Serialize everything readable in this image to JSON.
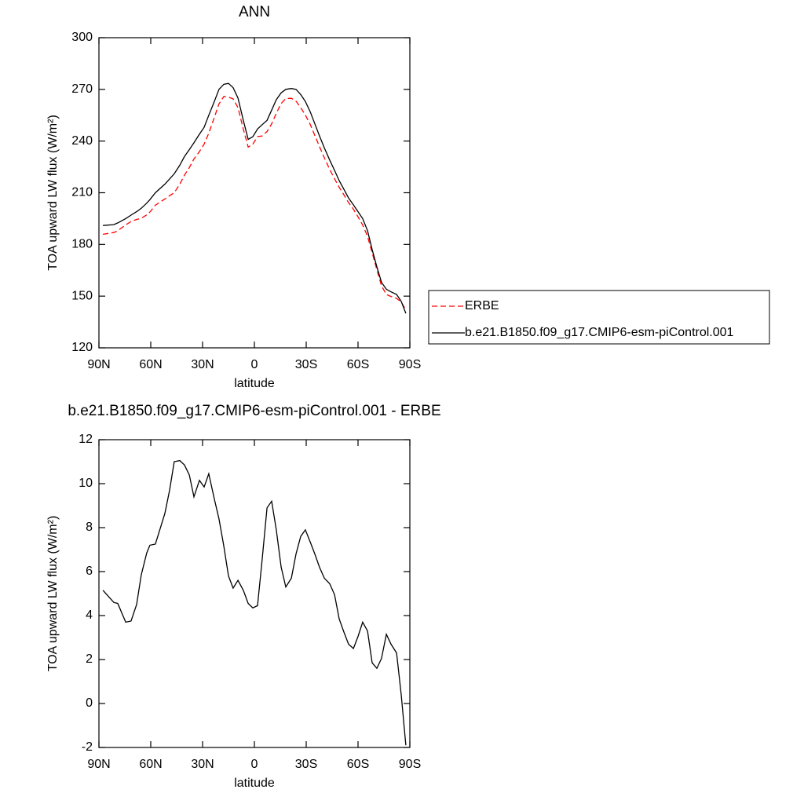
{
  "chart_data": [
    {
      "type": "line",
      "title": "ANN",
      "x_label": "latitude",
      "y_label": "TOA upward LW flux (W/m²)",
      "x": [
        87.7,
        81.4,
        79.1,
        74.5,
        71.4,
        68.2,
        65.5,
        62.3,
        60.5,
        57.3,
        51.8,
        49.1,
        46.4,
        43.2,
        40.5,
        37.7,
        35.0,
        31.8,
        29.1,
        26.4,
        23.2,
        20.5,
        17.7,
        15.0,
        12.3,
        9.5,
        6.4,
        3.6,
        0.9,
        -1.8,
        -4.5,
        -7.3,
        -10.0,
        -12.7,
        -15.5,
        -18.2,
        -21.4,
        -24.1,
        -26.8,
        -29.5,
        -32.3,
        -35.0,
        -37.7,
        -40.5,
        -43.6,
        -46.4,
        -49.1,
        -51.8,
        -54.5,
        -57.3,
        -60.0,
        -62.7,
        -65.5,
        -68.2,
        -70.9,
        -73.6,
        -76.4,
        -79.1,
        -82.3,
        -85.0,
        -87.7
      ],
      "series": [
        {
          "name": "ERBE",
          "color": "#ff0000",
          "dash": "dashed",
          "values": [
            185.9,
            186.9,
            188,
            191.3,
            193.3,
            194.5,
            195.2,
            197.2,
            198.8,
            202.8,
            206.4,
            208.3,
            210,
            215,
            220.2,
            224.6,
            229.6,
            233.9,
            238.2,
            244.6,
            253.7,
            261.6,
            265.9,
            265.5,
            264.5,
            259.4,
            246.9,
            236.5,
            238.2,
            242.6,
            243,
            245.5,
            250,
            256.1,
            261.8,
            264.7,
            264.8,
            263.2,
            259.4,
            255.1,
            249.7,
            243.2,
            236.8,
            230.3,
            223.6,
            218.1,
            213.2,
            208.8,
            204.3,
            200.5,
            196,
            191.3,
            184.7,
            175.2,
            165.4,
            156,
            150.9,
            149.8,
            148.7,
            146.6,
            141.9
          ]
        },
        {
          "name": "b.e21.B1850.f09_g17.CMIP6-esm-piControl.001",
          "color": "#000000",
          "dash": "solid",
          "values": [
            191,
            191.5,
            192.5,
            195,
            197,
            199,
            201,
            204,
            206,
            210,
            215,
            218,
            221,
            226,
            231,
            235,
            239,
            244,
            248,
            255,
            263,
            270,
            273,
            273.5,
            271,
            265,
            252,
            241,
            242.5,
            247,
            249.5,
            252,
            258,
            264,
            268,
            270,
            270.5,
            270,
            267,
            263,
            257,
            250,
            243,
            236,
            229,
            223,
            217,
            212,
            207,
            203,
            199,
            195,
            188,
            177,
            167,
            158,
            154,
            152.5,
            151,
            147,
            140
          ]
        }
      ],
      "xlim": [
        90,
        -90
      ],
      "xticks": [
        {
          "value": 90,
          "label": "90N"
        },
        {
          "value": 60,
          "label": "60N"
        },
        {
          "value": 30,
          "label": "30N"
        },
        0,
        {
          "value": -30,
          "label": "30S"
        },
        {
          "value": -60,
          "label": "60S"
        },
        {
          "value": -90,
          "label": "90S"
        }
      ],
      "ylim": [
        120,
        300
      ],
      "yticks": [
        120,
        150,
        180,
        210,
        240,
        270,
        300
      ],
      "legend": "right"
    },
    {
      "type": "line",
      "title": "b.e21.B1850.f09_g17.CMIP6-esm-piControl.001 - ERBE",
      "x_label": "latitude",
      "y_label": "TOA upward LW flux (W/m²)",
      "x": [
        87.7,
        81.4,
        79.1,
        74.5,
        71.4,
        68.2,
        65.5,
        62.3,
        60.5,
        57.3,
        51.8,
        49.1,
        46.4,
        43.2,
        40.5,
        37.7,
        35.0,
        31.8,
        29.1,
        26.4,
        23.2,
        20.5,
        17.7,
        15.0,
        12.3,
        9.5,
        6.4,
        3.6,
        0.9,
        -1.8,
        -4.5,
        -7.3,
        -10.0,
        -12.7,
        -15.5,
        -18.2,
        -21.4,
        -24.1,
        -26.8,
        -29.5,
        -32.3,
        -35.0,
        -37.7,
        -40.5,
        -43.6,
        -46.4,
        -49.1,
        -51.8,
        -54.5,
        -57.3,
        -60.0,
        -62.7,
        -65.5,
        -68.2,
        -70.9,
        -73.6,
        -76.4,
        -79.1,
        -82.3,
        -85.0,
        -87.7
      ],
      "values": [
        5.15,
        4.6,
        4.55,
        3.7,
        3.75,
        4.5,
        5.85,
        6.85,
        7.2,
        7.25,
        8.65,
        9.7,
        11.0,
        11.05,
        10.85,
        10.4,
        9.4,
        10.15,
        9.85,
        10.45,
        9.3,
        8.4,
        7.15,
        5.8,
        5.25,
        5.6,
        5.15,
        4.55,
        4.35,
        4.45,
        6.55,
        8.9,
        9.2,
        7.9,
        6.2,
        5.3,
        5.7,
        6.8,
        7.6,
        7.9,
        7.35,
        6.8,
        6.2,
        5.7,
        5.45,
        4.95,
        3.85,
        3.25,
        2.7,
        2.5,
        3.05,
        3.7,
        3.3,
        1.85,
        1.6,
        2.05,
        3.15,
        2.7,
        2.3,
        0.4,
        -1.9
      ],
      "color": "#000000",
      "xlim": [
        90,
        -90
      ],
      "xticks": [
        {
          "value": 90,
          "label": "90N"
        },
        {
          "value": 60,
          "label": "60N"
        },
        {
          "value": 30,
          "label": "30N"
        },
        0,
        {
          "value": -30,
          "label": "30S"
        },
        {
          "value": -60,
          "label": "60S"
        },
        {
          "value": -90,
          "label": "90S"
        }
      ],
      "ylim": [
        -2,
        12
      ],
      "yticks": [
        -2,
        0,
        2,
        4,
        6,
        8,
        10,
        12
      ]
    }
  ]
}
